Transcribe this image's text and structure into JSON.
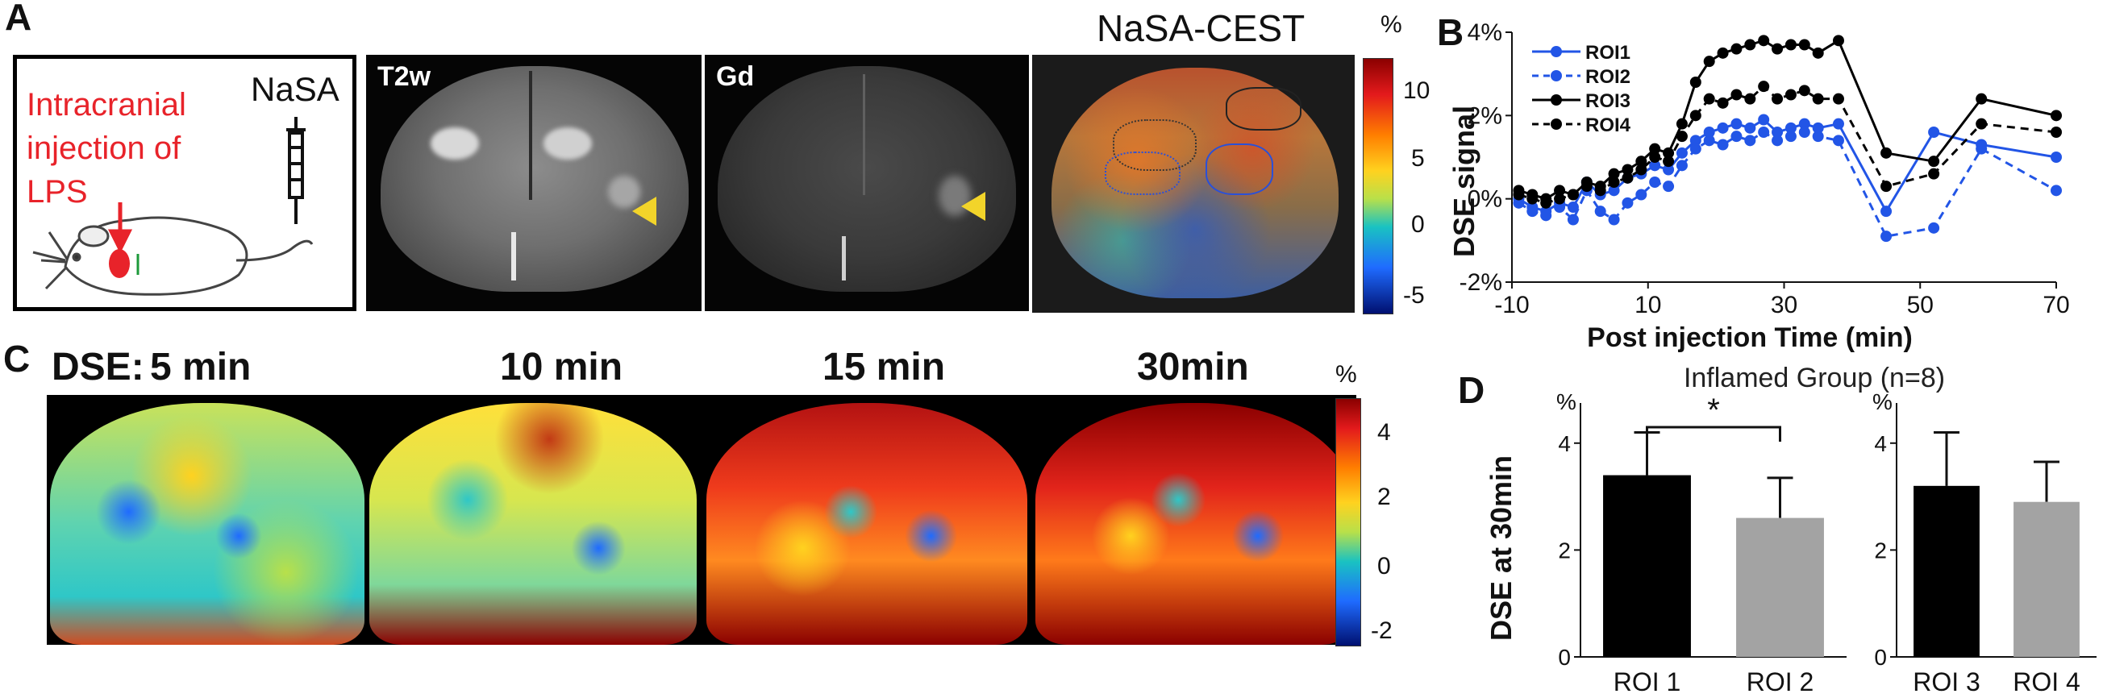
{
  "panel_labels": {
    "a": "A",
    "b": "B",
    "c": "C",
    "d": "D"
  },
  "panel_a": {
    "cartoon_text": "Intracranial injection of LPS",
    "cartoon_line1": "Intracranial",
    "cartoon_line2": "injection of",
    "cartoon_line3": "LPS",
    "nasa_label": "NaSA",
    "t2w_label": "T2w",
    "gd_label": "Gd",
    "cest_title": "NaSA-CEST",
    "colorbar_unit": "%",
    "colorbar_ticks": [
      "10",
      "5",
      "0",
      "-5"
    ],
    "colors": {
      "injection": "#e8232a",
      "arrow": "#f2d42a"
    }
  },
  "panel_c": {
    "prefix": "DSE:",
    "times": [
      "5 min",
      "10 min",
      "15 min",
      "30min"
    ],
    "colorbar_unit": "%",
    "colorbar_ticks": [
      "4",
      "2",
      "0",
      "-2"
    ]
  },
  "chart_data": [
    {
      "type": "line",
      "panel": "B",
      "xlabel": "Post injection Time (min)",
      "ylabel": "DSE signal",
      "xlim": [
        -10,
        70
      ],
      "ylim": [
        -2,
        4
      ],
      "x_ticks": [
        "-10",
        "10",
        "30",
        "50",
        "70"
      ],
      "y_ticks": [
        "4%",
        "2%",
        "0%",
        "-2%"
      ],
      "grid": false,
      "legend_position": "top-left",
      "series": [
        {
          "name": "ROI1",
          "color": "#2255e6",
          "dash": false,
          "x": [
            -9,
            -7,
            -5,
            -3,
            -1,
            1,
            3,
            5,
            7,
            9,
            11,
            13,
            15,
            17,
            19,
            21,
            23,
            25,
            27,
            29,
            31,
            33,
            35,
            38,
            45,
            52,
            59,
            70
          ],
          "y": [
            0,
            -0.2,
            -0.3,
            -0.1,
            -0.2,
            0.4,
            0.1,
            0.2,
            0.5,
            0.6,
            0.8,
            0.7,
            1.1,
            1.4,
            1.6,
            1.7,
            1.8,
            1.7,
            1.9,
            1.6,
            1.7,
            1.8,
            1.7,
            1.8,
            -0.3,
            1.6,
            1.3,
            1.0
          ]
        },
        {
          "name": "ROI2",
          "color": "#2255e6",
          "dash": true,
          "x": [
            -9,
            -7,
            -5,
            -3,
            -1,
            1,
            3,
            5,
            7,
            9,
            11,
            13,
            15,
            17,
            19,
            21,
            23,
            25,
            27,
            29,
            31,
            33,
            35,
            38,
            45,
            52,
            59,
            70
          ],
          "y": [
            -0.1,
            -0.3,
            -0.4,
            -0.2,
            -0.5,
            0.2,
            -0.3,
            -0.5,
            -0.1,
            0.1,
            0.4,
            0.3,
            0.8,
            1.2,
            1.4,
            1.3,
            1.5,
            1.4,
            1.6,
            1.4,
            1.5,
            1.6,
            1.5,
            1.4,
            -0.9,
            -0.7,
            1.2,
            0.2
          ]
        },
        {
          "name": "ROI3",
          "color": "#000000",
          "dash": false,
          "x": [
            -9,
            -7,
            -5,
            -3,
            -1,
            1,
            3,
            5,
            7,
            9,
            11,
            13,
            15,
            17,
            19,
            21,
            23,
            25,
            27,
            29,
            31,
            33,
            35,
            38,
            45,
            52,
            59,
            70
          ],
          "y": [
            0.2,
            0.1,
            0.0,
            0.2,
            0.1,
            0.4,
            0.3,
            0.6,
            0.7,
            0.9,
            1.2,
            1.1,
            1.8,
            2.8,
            3.3,
            3.5,
            3.6,
            3.7,
            3.8,
            3.6,
            3.7,
            3.7,
            3.5,
            3.8,
            1.1,
            0.9,
            2.4,
            2.0
          ]
        },
        {
          "name": "ROI4",
          "color": "#000000",
          "dash": true,
          "x": [
            -9,
            -7,
            -5,
            -3,
            -1,
            1,
            3,
            5,
            7,
            9,
            11,
            13,
            15,
            17,
            19,
            21,
            23,
            25,
            27,
            29,
            31,
            33,
            35,
            38,
            45,
            52,
            59,
            70
          ],
          "y": [
            0.1,
            0.0,
            -0.1,
            0.0,
            0.1,
            0.3,
            0.2,
            0.4,
            0.5,
            0.7,
            1.0,
            0.9,
            1.5,
            2.0,
            2.4,
            2.3,
            2.5,
            2.4,
            2.7,
            2.4,
            2.5,
            2.6,
            2.4,
            2.4,
            0.3,
            0.6,
            1.8,
            1.6
          ]
        }
      ]
    },
    {
      "type": "bar",
      "panel": "D",
      "title": "Inflamed Group (n=8)",
      "ylabel": "DSE at 30min",
      "y_unit": "%",
      "ylim": [
        0,
        4.6
      ],
      "y_ticks": [
        "0",
        "2",
        "4"
      ],
      "significance": "*",
      "groups": [
        {
          "categories": [
            "ROI 1",
            "ROI 2"
          ],
          "values": [
            3.4,
            2.6
          ],
          "errors": [
            0.8,
            0.75
          ],
          "colors": [
            "#000000",
            "#a3a3a3"
          ]
        },
        {
          "categories": [
            "ROI 3",
            "ROI 4"
          ],
          "values": [
            3.2,
            2.9
          ],
          "errors": [
            1.0,
            0.75
          ],
          "colors": [
            "#000000",
            "#a3a3a3"
          ]
        }
      ]
    }
  ]
}
